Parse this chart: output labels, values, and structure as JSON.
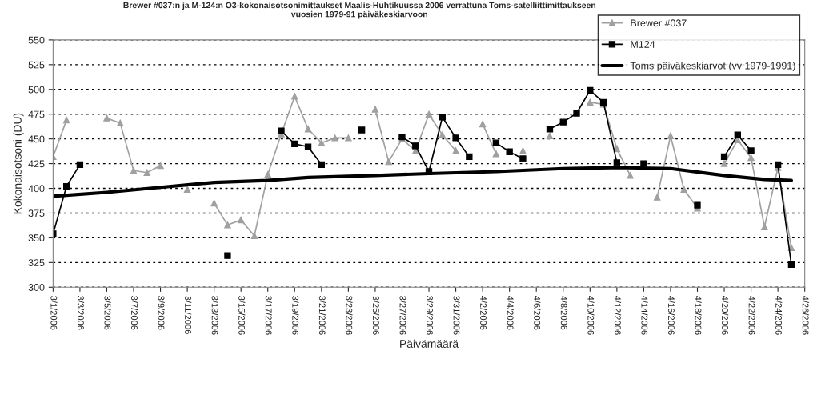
{
  "chart_data": {
    "type": "line",
    "title": "Brewer #037:n ja M-124:n O3-kokonaisotsonimittaukset Maalis-Huhtikuussa 2006 verrattuna Toms-satelliittimittaukseen\nvuosien 1979-91 päiväkeskiarvoon",
    "xlabel": "Päivämäärä",
    "ylabel": "Kokonaisotsoni (DU)",
    "x": [
      "2006-03-01",
      "2006-03-02",
      "2006-03-03",
      "2006-03-04",
      "2006-03-05",
      "2006-03-06",
      "2006-03-07",
      "2006-03-08",
      "2006-03-09",
      "2006-03-10",
      "2006-03-11",
      "2006-03-12",
      "2006-03-13",
      "2006-03-14",
      "2006-03-15",
      "2006-03-16",
      "2006-03-17",
      "2006-03-18",
      "2006-03-19",
      "2006-03-20",
      "2006-03-21",
      "2006-03-22",
      "2006-03-23",
      "2006-03-24",
      "2006-03-25",
      "2006-03-26",
      "2006-03-27",
      "2006-03-28",
      "2006-03-29",
      "2006-03-30",
      "2006-03-31",
      "2006-04-01",
      "2006-04-02",
      "2006-04-03",
      "2006-04-04",
      "2006-04-05",
      "2006-04-06",
      "2006-04-07",
      "2006-04-08",
      "2006-04-09",
      "2006-04-10",
      "2006-04-11",
      "2006-04-12",
      "2006-04-13",
      "2006-04-14",
      "2006-04-15",
      "2006-04-16",
      "2006-04-17",
      "2006-04-18",
      "2006-04-19",
      "2006-04-20",
      "2006-04-21",
      "2006-04-22",
      "2006-04-23",
      "2006-04-24",
      "2006-04-25"
    ],
    "series": [
      {
        "name": "Brewer #037",
        "color": "#a0a0a0",
        "marker": "triangle",
        "values": [
          432,
          469,
          null,
          null,
          471,
          466,
          418,
          416,
          423,
          null,
          399,
          null,
          385,
          363,
          368,
          352,
          414,
          455,
          493,
          460,
          446,
          451,
          451,
          null,
          480,
          427,
          450,
          438,
          475,
          454,
          438,
          null,
          465,
          435,
          null,
          438,
          null,
          453,
          null,
          null,
          487,
          485,
          440,
          413,
          null,
          391,
          453,
          399,
          380,
          null,
          425,
          449,
          431,
          361,
          421,
          340
        ]
      },
      {
        "name": "M124",
        "color": "#000000",
        "marker": "square",
        "values": [
          354,
          402,
          424,
          null,
          null,
          null,
          null,
          null,
          null,
          null,
          null,
          null,
          null,
          332,
          null,
          null,
          null,
          458,
          445,
          442,
          424,
          null,
          null,
          459,
          null,
          null,
          452,
          443,
          417,
          472,
          451,
          432,
          null,
          446,
          437,
          430,
          null,
          460,
          467,
          476,
          499,
          487,
          426,
          null,
          425,
          null,
          null,
          null,
          383,
          null,
          432,
          454,
          438,
          null,
          424,
          323
        ]
      },
      {
        "name": "Toms päiväkeskiarvot (vv 1979-1991)",
        "color": "#000000",
        "marker": "none",
        "x": [
          "2006-03-01",
          "2006-03-05",
          "2006-03-09",
          "2006-03-13",
          "2006-03-17",
          "2006-03-20",
          "2006-03-25",
          "2006-03-29",
          "2006-04-03",
          "2006-04-08",
          "2006-04-12",
          "2006-04-16",
          "2006-04-20",
          "2006-04-23",
          "2006-04-25"
        ],
        "values": [
          392,
          396,
          401,
          406,
          408,
          411,
          413,
          415,
          417,
          420,
          421,
          420,
          413,
          409,
          408
        ]
      }
    ],
    "xlim": [
      "2006-03-01",
      "2006-04-26"
    ],
    "xticks": [
      {
        "value": "2006-03-01",
        "label": "3/1/2006"
      },
      {
        "value": "2006-03-03",
        "label": "3/3/2006"
      },
      {
        "value": "2006-03-05",
        "label": "3/5/2006"
      },
      {
        "value": "2006-03-07",
        "label": "3/7/2006"
      },
      {
        "value": "2006-03-09",
        "label": "3/9/2006"
      },
      {
        "value": "2006-03-11",
        "label": "3/11/2006"
      },
      {
        "value": "2006-03-13",
        "label": "3/13/2006"
      },
      {
        "value": "2006-03-15",
        "label": "3/15/2006"
      },
      {
        "value": "2006-03-17",
        "label": "3/17/2006"
      },
      {
        "value": "2006-03-19",
        "label": "3/19/2006"
      },
      {
        "value": "2006-03-21",
        "label": "3/21/2006"
      },
      {
        "value": "2006-03-23",
        "label": "3/23/2006"
      },
      {
        "value": "2006-03-25",
        "label": "3/25/2006"
      },
      {
        "value": "2006-03-27",
        "label": "3/27/2006"
      },
      {
        "value": "2006-03-29",
        "label": "3/29/2006"
      },
      {
        "value": "2006-03-31",
        "label": "3/31/2006"
      },
      {
        "value": "2006-04-02",
        "label": "4/2/2006"
      },
      {
        "value": "2006-04-04",
        "label": "4/4/2006"
      },
      {
        "value": "2006-04-06",
        "label": "4/6/2006"
      },
      {
        "value": "2006-04-08",
        "label": "4/8/2006"
      },
      {
        "value": "2006-04-10",
        "label": "4/10/2006"
      },
      {
        "value": "2006-04-12",
        "label": "4/12/2006"
      },
      {
        "value": "2006-04-14",
        "label": "4/14/2006"
      },
      {
        "value": "2006-04-16",
        "label": "4/16/2006"
      },
      {
        "value": "2006-04-18",
        "label": "4/18/2006"
      },
      {
        "value": "2006-04-20",
        "label": "4/20/2006"
      },
      {
        "value": "2006-04-22",
        "label": "4/22/2006"
      },
      {
        "value": "2006-04-24",
        "label": "4/24/2006"
      },
      {
        "value": "2006-04-26",
        "label": "4/26/2006"
      }
    ],
    "ylim": [
      300,
      550
    ],
    "yticks": [
      300,
      325,
      350,
      375,
      400,
      425,
      450,
      475,
      500,
      525,
      550
    ],
    "grid": "y",
    "legend": "top right"
  }
}
